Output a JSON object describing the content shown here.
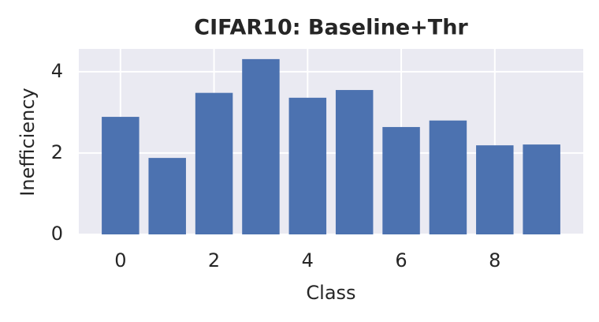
{
  "chart_data": {
    "type": "bar",
    "title": "CIFAR10: Baseline+Thr",
    "xlabel": "Class",
    "ylabel": "Inefficiency",
    "x": [
      0,
      1,
      2,
      3,
      4,
      5,
      6,
      7,
      8,
      9
    ],
    "values": [
      2.89,
      1.88,
      3.48,
      4.31,
      3.36,
      3.55,
      2.64,
      2.8,
      2.19,
      2.21
    ],
    "color": "#4c72b0",
    "xlim": [
      -0.89,
      9.89
    ],
    "xticks": [
      0,
      2,
      4,
      6,
      8
    ],
    "ylim": [
      0,
      4.56
    ],
    "yticks": [
      0,
      2,
      4
    ],
    "bar_width": 0.8,
    "grid": true
  }
}
